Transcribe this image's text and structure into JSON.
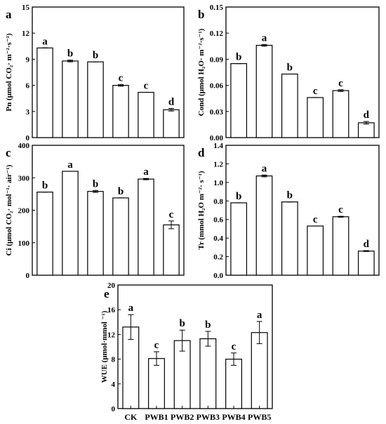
{
  "chart_data": [
    {
      "panel": "a",
      "type": "bar",
      "ylabel": "Pn (μmol CO₂· m⁻²·s⁻¹)",
      "ylim": [
        0,
        15
      ],
      "yticks": [
        "0",
        "3",
        "6",
        "9",
        "12",
        "15"
      ],
      "values": [
        10.3,
        8.8,
        8.7,
        6.0,
        5.2,
        3.2
      ],
      "errors": [
        0.0,
        0.1,
        0.0,
        0.1,
        0.0,
        0.15
      ],
      "letters": [
        "a",
        "b",
        "b",
        "c",
        "c",
        "d"
      ]
    },
    {
      "panel": "b",
      "type": "bar",
      "ylabel": "Cond (μmol H₂O· m⁻²·s⁻¹)",
      "ylim": [
        0,
        0.15
      ],
      "yticks": [
        "0.00",
        "0.03",
        "0.06",
        "0.09",
        "0.12",
        "0.15"
      ],
      "values": [
        0.085,
        0.106,
        0.073,
        0.046,
        0.054,
        0.017
      ],
      "errors": [
        0.0,
        0.001,
        0.0,
        0.0,
        0.001,
        0.0015
      ],
      "letters": [
        "b",
        "a",
        "b",
        "c",
        "c",
        "d"
      ]
    },
    {
      "panel": "c",
      "type": "bar",
      "ylabel": "Ci (μmol CO₂· mol⁻¹· air⁻¹)",
      "ylim": [
        0,
        400
      ],
      "yticks": [
        "0",
        "100",
        "200",
        "300",
        "400"
      ],
      "values": [
        256,
        320,
        258,
        238,
        296,
        155
      ],
      "errors": [
        0,
        0,
        3,
        0,
        2,
        12
      ],
      "letters": [
        "b",
        "a",
        "b",
        "b",
        "a",
        "c"
      ]
    },
    {
      "panel": "d",
      "type": "bar",
      "ylabel": "Tr (mmol H₂O m⁻²· s⁻¹)",
      "ylim": [
        0,
        1.4
      ],
      "yticks": [
        "0.0",
        "0.2",
        "0.4",
        "0.6",
        "0.8",
        "1.0",
        "1.2",
        "1.4"
      ],
      "values": [
        0.78,
        1.07,
        0.79,
        0.53,
        0.63,
        0.26
      ],
      "errors": [
        0.0,
        0.01,
        0.0,
        0.0,
        0.005,
        0.005
      ],
      "letters": [
        "b",
        "a",
        "b",
        "c",
        "c",
        "d"
      ]
    },
    {
      "panel": "e",
      "type": "bar",
      "ylabel": "WUE (μmol·mmol ⁻¹)",
      "ylim": [
        0,
        20
      ],
      "yticks": [
        "0",
        "4",
        "8",
        "12",
        "16",
        "20"
      ],
      "categories": [
        "CK",
        "PWB1",
        "PWB2",
        "PWB3",
        "PWB4",
        "PWB5"
      ],
      "values": [
        13.2,
        8.1,
        11.0,
        11.3,
        8.0,
        12.3
      ],
      "errors": [
        2.0,
        1.1,
        1.7,
        1.2,
        1.0,
        1.8
      ],
      "letters": [
        "a",
        "c",
        "b",
        "b",
        "c",
        "a"
      ]
    }
  ]
}
